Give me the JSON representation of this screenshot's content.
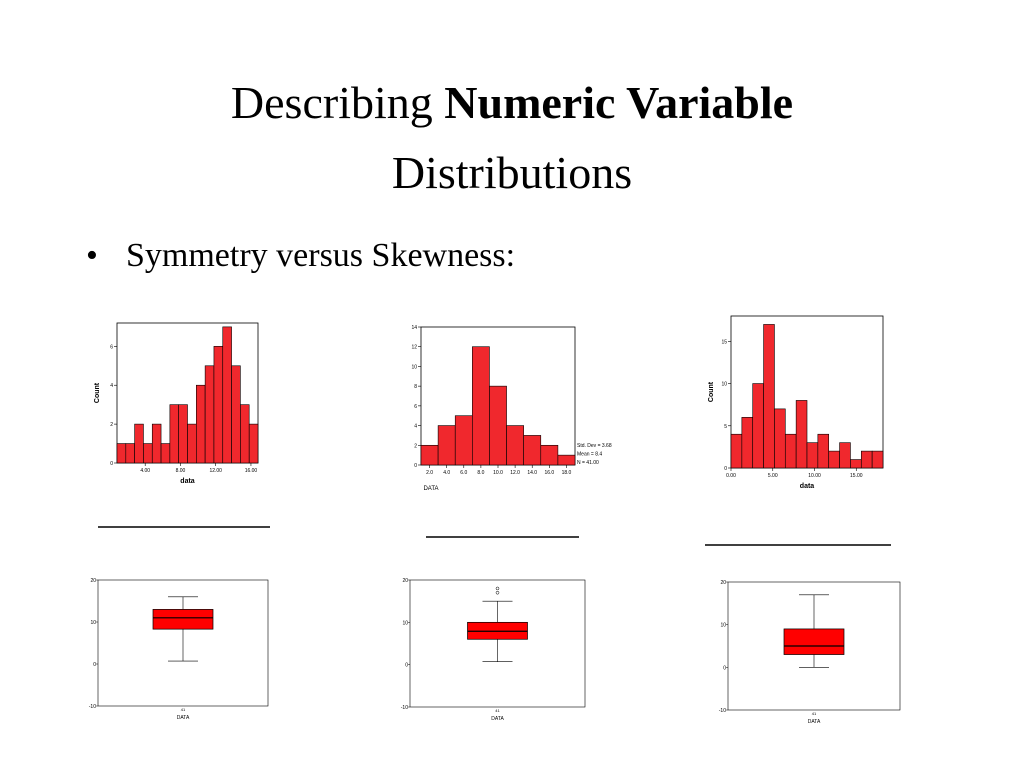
{
  "slide": {
    "title_start": "Describing",
    "title_bold": "Numeric Variable",
    "title_end": "Distributions",
    "bullet": "Symmetry versus Skewness:"
  },
  "chart_data": [
    {
      "type": "histogram",
      "ylabel": "Count",
      "xlabel": "data",
      "color": "#f0282d",
      "bins": [
        0.8,
        1.8,
        2.8,
        3.8,
        4.8,
        5.8,
        6.8,
        7.8,
        8.8,
        9.8,
        10.8,
        11.8,
        12.8,
        13.8,
        14.8,
        15.8,
        16.8
      ],
      "values": [
        1,
        1,
        2,
        1,
        2,
        1,
        3,
        3,
        2,
        4,
        5,
        6,
        7,
        5,
        3,
        2
      ],
      "xlim": [
        0.8,
        16.8
      ],
      "xticks": [
        {
          "value": 4,
          "label": "4.00"
        },
        {
          "value": 8,
          "label": "8.00"
        },
        {
          "value": 12,
          "label": "12.00"
        },
        {
          "value": 16,
          "label": "16.00"
        }
      ],
      "ylim": [
        0,
        7.2
      ],
      "yticks": [
        0,
        2,
        4,
        6
      ]
    },
    {
      "type": "histogram",
      "xlabel": "DATA",
      "color": "#f0282d",
      "bins": [
        1,
        3,
        5,
        7,
        9,
        11,
        13,
        15,
        17,
        19
      ],
      "values": [
        2,
        4,
        5,
        12,
        8,
        4,
        3,
        2,
        1
      ],
      "xlim": [
        1,
        19
      ],
      "xticks": [
        {
          "value": 2,
          "label": "2.0"
        },
        {
          "value": 4,
          "label": "4.0"
        },
        {
          "value": 6,
          "label": "6.0"
        },
        {
          "value": 8,
          "label": "8.0"
        },
        {
          "value": 10,
          "label": "10.0"
        },
        {
          "value": 12,
          "label": "12.0"
        },
        {
          "value": 14,
          "label": "14.0"
        },
        {
          "value": 16,
          "label": "16.0"
        },
        {
          "value": 18,
          "label": "18.0"
        }
      ],
      "ylim": [
        0,
        14
      ],
      "yticks": [
        0,
        2,
        4,
        6,
        8,
        10,
        12,
        14
      ],
      "annotations": [
        "Std. Dev = 3.68",
        "Mean = 8.4",
        "N = 41.00"
      ]
    },
    {
      "type": "histogram",
      "ylabel": "Count",
      "xlabel": "data",
      "color": "#f0282d",
      "bins": [
        0,
        1.3,
        2.6,
        3.9,
        5.2,
        6.5,
        7.8,
        9.1,
        10.4,
        11.7,
        13,
        14.3,
        15.6,
        16.9,
        18.2
      ],
      "values": [
        4,
        6,
        10,
        17,
        7,
        4,
        8,
        3,
        4,
        2,
        3,
        1,
        2,
        2
      ],
      "xlim": [
        0,
        18.2
      ],
      "xticks": [
        {
          "value": 0,
          "label": "0.00"
        },
        {
          "value": 5,
          "label": "5.00"
        },
        {
          "value": 10,
          "label": "10.00"
        },
        {
          "value": 15,
          "label": "15.00"
        }
      ],
      "ylim": [
        0,
        18
      ],
      "yticks": [
        0,
        5,
        10,
        15
      ]
    },
    {
      "type": "box",
      "xlabel": "DATA",
      "categories": [
        "41"
      ],
      "color": "#ff0000",
      "whisker_low": 0.7,
      "q1": 8.3,
      "median": 11,
      "q3": 13,
      "whisker_high": 16,
      "ylim": [
        -10,
        20
      ],
      "yticks": [
        -10,
        0,
        10,
        20
      ]
    },
    {
      "type": "box",
      "xlabel": "DATA",
      "categories": [
        "41"
      ],
      "color": "#ff0000",
      "whisker_low": 0.7,
      "q1": 6,
      "median": 7.9,
      "q3": 10,
      "whisker_high": 15,
      "outliers": [
        18,
        17
      ],
      "ylim": [
        -10,
        20
      ],
      "yticks": [
        -10,
        0,
        10,
        20
      ]
    },
    {
      "type": "box",
      "xlabel": "DATA",
      "categories": [
        "41"
      ],
      "color": "#ff0000",
      "whisker_low": 0,
      "q1": 3,
      "median": 5,
      "q3": 9,
      "whisker_high": 17,
      "ylim": [
        -10,
        20
      ],
      "yticks": [
        -10,
        0,
        10,
        20
      ]
    }
  ]
}
